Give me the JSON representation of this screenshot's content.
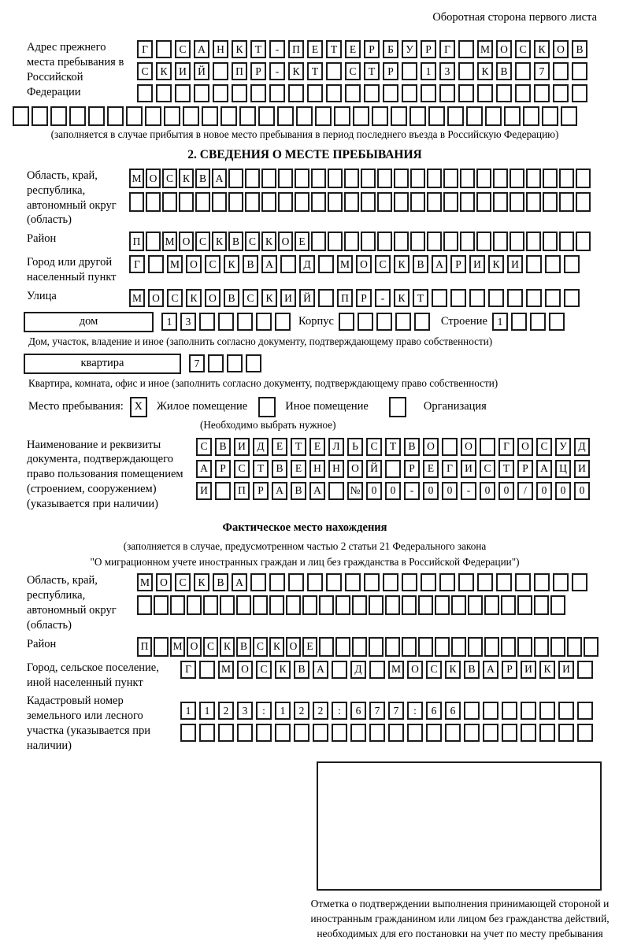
{
  "colors": {
    "border": "#1c1c1c",
    "text": "#000000",
    "background": "#ffffff"
  },
  "page": {
    "header_note": "Оборотная сторона первого листа"
  },
  "prev_address": {
    "label": "Адрес прежнего места пребывания в Российской Федерации",
    "rows": [
      {
        "text": "Г САНКТ-ПЕТЕРБУРГ МОСКОВ",
        "len": 24
      },
      {
        "text": "СКИЙ ПР-КТ СТР 13 КВ 7",
        "len": 24
      },
      {
        "text": "",
        "len": 24
      }
    ],
    "full_row": {
      "text": "",
      "len": 30
    },
    "caption": "(заполняется в случае прибытия в новое место пребывания в период последнего въезда в Российскую Федерацию)"
  },
  "section2": {
    "title": "2. СВЕДЕНИЯ О МЕСТЕ ПРЕБЫВАНИЯ",
    "region": {
      "label": "Область, край, республика, автономный округ (область)",
      "rows": [
        {
          "text": "МОСКВА",
          "len": 28
        },
        {
          "text": "",
          "len": 28
        }
      ]
    },
    "district": {
      "label": "Район",
      "row": {
        "text": "П МОСКВСКОЕ",
        "len": 28
      }
    },
    "city": {
      "label": "Город или другой населенный пункт",
      "row": {
        "text": "Г МОСКВА Д МОСКВАРИКИ",
        "len": 24
      }
    },
    "street": {
      "label": "Улица",
      "row": {
        "text": "МОСКОВСКИЙ ПР-КТ",
        "len": 24
      }
    },
    "house": {
      "box_label": "дом",
      "number": {
        "text": "13",
        "len": 7
      },
      "korpus_label": "Корпус",
      "korpus": {
        "text": "",
        "len": 5
      },
      "stroenie_label": "Строение",
      "stroenie": {
        "text": "1",
        "len": 4
      }
    },
    "house_caption": "Дом, участок, владение и иное (заполнить согласно документу, подтверждающему право собственности)",
    "apartment": {
      "box_label": "квартира",
      "number": {
        "text": "7",
        "len": 4
      }
    },
    "apartment_caption": "Квартира, комната, офис и иное (заполнить согласно документу, подтверждающему право собственности)",
    "stay": {
      "label": "Место пребывания:",
      "options": [
        {
          "label": "Жилое помещение",
          "mark": "X"
        },
        {
          "label": "Иное помещение",
          "mark": ""
        },
        {
          "label": "Организация",
          "mark": ""
        }
      ],
      "caption": "(Необходимо выбрать нужное)"
    },
    "doc": {
      "label": "Наименование и реквизиты документа, подтверждающего право пользования помещением (строением, сооружением) (указывается при наличии)",
      "rows": [
        {
          "text": "СВИДЕТЕЛЬСТВО О ГОСУД",
          "len": 21
        },
        {
          "text": "АРСТВЕННОЙ РЕГИСТРАЦИ",
          "len": 21
        },
        {
          "text": "И ПРАВА №00-00-00/000",
          "len": 21
        }
      ]
    }
  },
  "fact": {
    "title": "Фактическое место нахождения",
    "caption1": "(заполняется в случае, предусмотренном частью 2 статьи 21 Федерального закона",
    "caption2": "\"О миграционном учете иностранных граждан и лиц без гражданства в Российской Федерации\")",
    "region": {
      "label": "Область, край, республика, автономный округ (область)",
      "rows": [
        {
          "text": "МОСКВА",
          "len": 24
        },
        {
          "text": "",
          "len": 26
        }
      ]
    },
    "district": {
      "label": "Район",
      "row": {
        "text": "П МОСКВСКОЕ",
        "len": 28
      }
    },
    "city": {
      "label": "Город, сельское поселение, иной населенный пункт",
      "row": {
        "text": "Г МОСКВА Д МОСКВАРИКИ",
        "len": 22
      }
    },
    "cadastral": {
      "label": "Кадастровый номер земельного или лесного участка (указывается при наличии)",
      "rows": [
        {
          "text": "1123:122:677:66",
          "len": 22
        },
        {
          "text": "",
          "len": 22
        }
      ]
    },
    "mark_caption": "Отметка о подтверждении выполнения принимающей стороной и иностранным гражданином или лицом без гражданства действий, необходимых для его постановки на учет по месту пребывания"
  }
}
